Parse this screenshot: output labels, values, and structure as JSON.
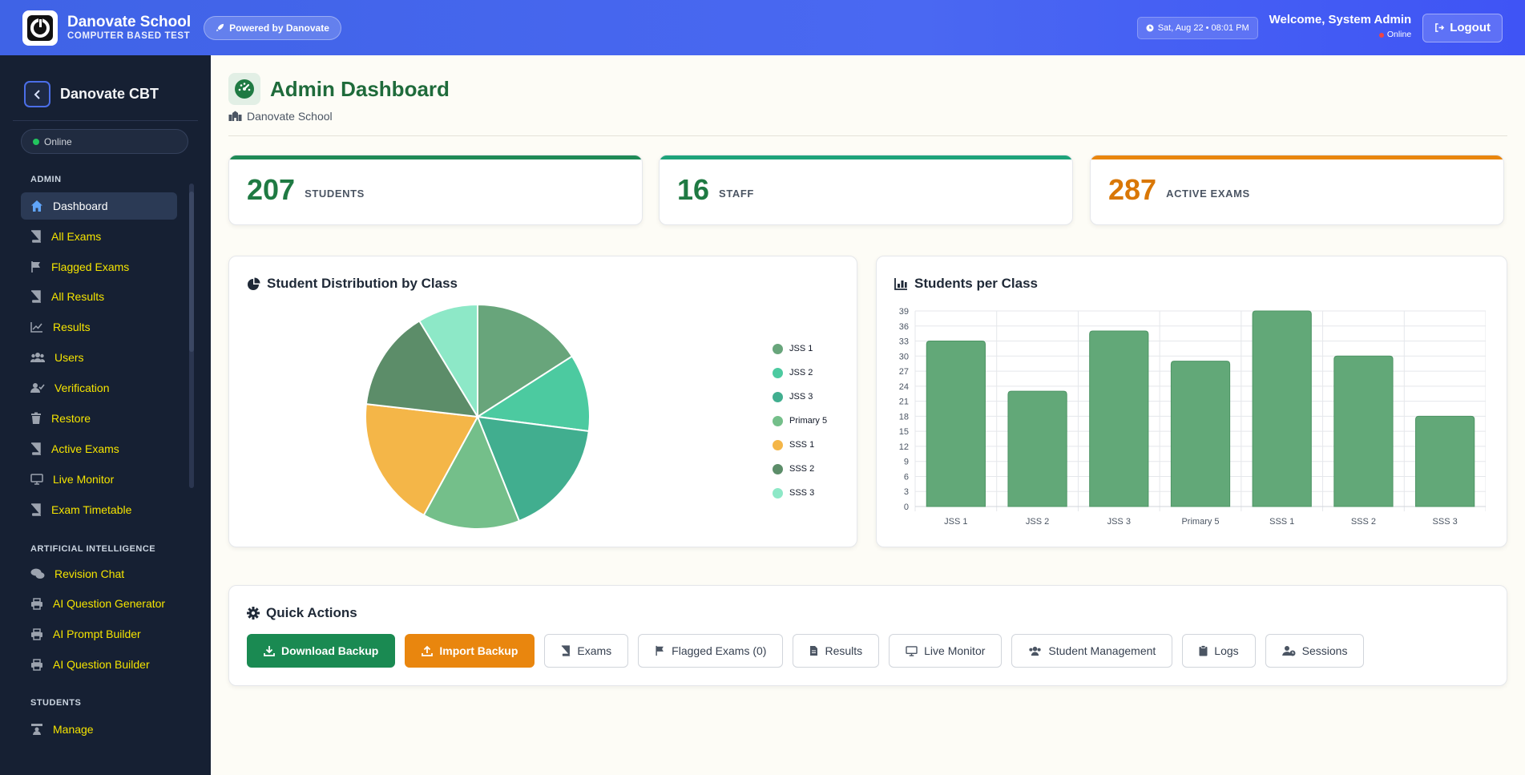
{
  "header": {
    "title": "Danovate School",
    "subtitle": "COMPUTER BASED TEST",
    "powered": "Powered by Danovate",
    "datetime": "Sat, Aug 22 • 08:01 PM",
    "welcome": "Welcome, System Admin",
    "status": "Online",
    "logout": "Logout"
  },
  "sidebar": {
    "title": "Danovate CBT",
    "online": "Online",
    "sections": {
      "admin": "ADMIN",
      "ai": "ARTIFICIAL INTELLIGENCE",
      "students": "STUDENTS"
    },
    "items": [
      {
        "label": "Dashboard",
        "icon": "home-icon"
      },
      {
        "label": "All Exams",
        "icon": "book-icon"
      },
      {
        "label": "Flagged Exams",
        "icon": "flag-icon"
      },
      {
        "label": "All Results",
        "icon": "book-icon"
      },
      {
        "label": "Results",
        "icon": "chart-line-icon"
      },
      {
        "label": "Users",
        "icon": "users-icon"
      },
      {
        "label": "Verification",
        "icon": "user-check-icon"
      },
      {
        "label": "Restore",
        "icon": "trash-icon"
      },
      {
        "label": "Active Exams",
        "icon": "book-icon"
      },
      {
        "label": "Live Monitor",
        "icon": "monitor-icon"
      },
      {
        "label": "Exam Timetable",
        "icon": "book-icon"
      },
      {
        "label": "Revision Chat",
        "icon": "comments-icon"
      },
      {
        "label": "AI Question Generator",
        "icon": "printer-icon"
      },
      {
        "label": "AI Prompt Builder",
        "icon": "printer-icon"
      },
      {
        "label": "AI Question Builder",
        "icon": "printer-icon"
      },
      {
        "label": "Manage",
        "icon": "teacher-icon"
      }
    ]
  },
  "page": {
    "title": "Admin Dashboard",
    "school": "Danovate School"
  },
  "stats": [
    {
      "value": "207",
      "label": "STUDENTS",
      "color": "#1f7a43"
    },
    {
      "value": "16",
      "label": "STAFF",
      "color": "#1f7a43"
    },
    {
      "value": "287",
      "label": "ACTIVE EXAMS",
      "color": "#d97706"
    }
  ],
  "pie_card": {
    "title": "Student Distribution by Class"
  },
  "bar_card": {
    "title": "Students per Class"
  },
  "chart_data": [
    {
      "type": "pie",
      "title": "Student Distribution by Class",
      "categories": [
        "JSS 1",
        "JSS 2",
        "JSS 3",
        "Primary 5",
        "SSS 1",
        "SSS 2",
        "SSS 3"
      ],
      "values": [
        33,
        23,
        35,
        29,
        39,
        30,
        18
      ],
      "colors": [
        "#68a57b",
        "#4ccaa0",
        "#41ae8f",
        "#74bf8a",
        "#f4b648",
        "#5c8d69",
        "#8de8c7"
      ],
      "legend": "right"
    },
    {
      "type": "bar",
      "title": "Students per Class",
      "categories": [
        "JSS 1",
        "JSS 2",
        "JSS 3",
        "Primary 5",
        "SSS 1",
        "SSS 2",
        "SSS 3"
      ],
      "values": [
        33,
        23,
        35,
        29,
        39,
        30,
        18
      ],
      "yticks": [
        0,
        3,
        6,
        9,
        12,
        15,
        18,
        21,
        24,
        27,
        30,
        33,
        36,
        39
      ],
      "ylim": [
        0,
        39
      ],
      "grid": true,
      "color": "#62a878"
    }
  ],
  "quick_actions": {
    "title": "Quick Actions",
    "buttons": [
      {
        "label": "Download Backup",
        "style": "green",
        "icon": "download-icon"
      },
      {
        "label": "Import Backup",
        "style": "orange",
        "icon": "upload-icon"
      },
      {
        "label": "Exams",
        "style": "outline",
        "icon": "book-icon"
      },
      {
        "label": "Flagged Exams (0)",
        "style": "outline",
        "icon": "flag-icon"
      },
      {
        "label": "Results",
        "style": "outline",
        "icon": "file-icon"
      },
      {
        "label": "Live Monitor",
        "style": "outline",
        "icon": "monitor-icon"
      },
      {
        "label": "Student Management",
        "style": "outline",
        "icon": "users-icon"
      },
      {
        "label": "Logs",
        "style": "outline",
        "icon": "clipboard-icon"
      },
      {
        "label": "Sessions",
        "style": "outline",
        "icon": "user-clock-icon"
      }
    ]
  }
}
